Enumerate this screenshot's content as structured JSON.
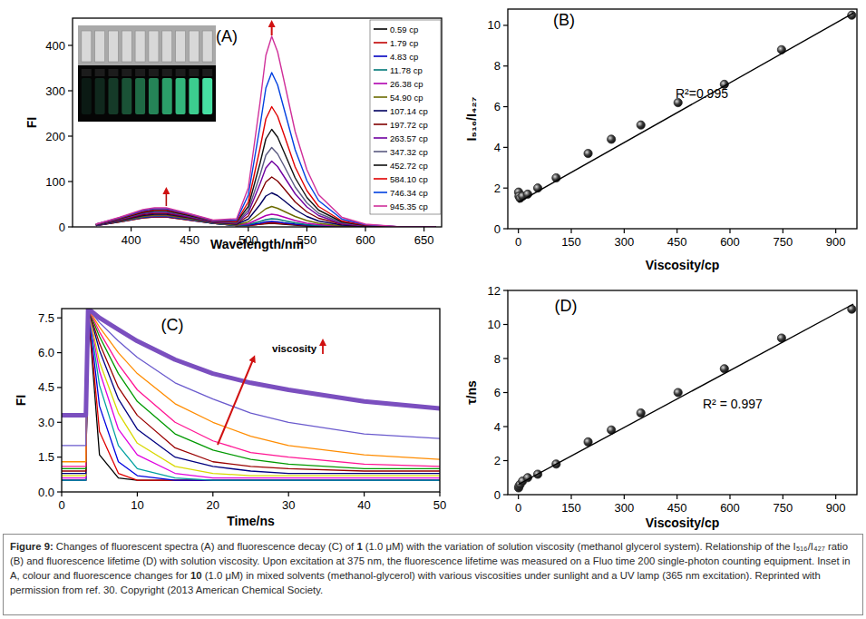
{
  "chart_data": [
    {
      "type": "line",
      "title": "(A)",
      "x_label": "Wavelength/nm",
      "y_label": "FI",
      "legend": "upper right",
      "x": [
        370,
        390,
        410,
        420,
        430,
        450,
        470,
        490,
        500,
        510,
        515,
        520,
        525,
        530,
        540,
        550,
        560,
        580,
        600,
        630,
        660
      ],
      "xlim": [
        350,
        665
      ],
      "xticks": [
        400,
        450,
        500,
        550,
        600,
        650
      ],
      "ylim": [
        0,
        460
      ],
      "yticks": [
        0,
        100,
        200,
        300,
        400
      ],
      "series": [
        {
          "name": "0.59 cp",
          "color": "#000000",
          "values": [
            3,
            11,
            20,
            22,
            22,
            15,
            8,
            3,
            3,
            6,
            7,
            8,
            7,
            6,
            4,
            2,
            1,
            0,
            0,
            0,
            0
          ]
        },
        {
          "name": "1.79 cp",
          "color": "#c00000",
          "values": [
            3,
            11,
            20,
            22,
            22,
            15,
            8,
            3,
            3,
            6,
            8,
            9,
            8,
            7,
            5,
            3,
            2,
            0,
            0,
            0,
            0
          ]
        },
        {
          "name": "4.83 cp",
          "color": "#0000c0",
          "values": [
            3,
            12,
            21,
            23,
            23,
            16,
            8,
            3,
            4,
            8,
            11,
            12,
            11,
            9,
            6,
            4,
            2,
            1,
            0,
            0,
            0
          ]
        },
        {
          "name": "11.78 cp",
          "color": "#007878",
          "values": [
            4,
            12,
            22,
            24,
            24,
            17,
            8,
            3,
            5,
            12,
            16,
            18,
            17,
            14,
            9,
            5,
            3,
            1,
            0,
            0,
            0
          ]
        },
        {
          "name": "26.38 cp",
          "color": "#b000b0",
          "values": [
            4,
            13,
            23,
            25,
            25,
            18,
            9,
            4,
            7,
            19,
            25,
            28,
            26,
            22,
            14,
            8,
            5,
            1,
            0,
            0,
            0
          ]
        },
        {
          "name": "54.90 cp",
          "color": "#6b6b00",
          "values": [
            4,
            13,
            23,
            26,
            26,
            18,
            9,
            4,
            11,
            30,
            40,
            45,
            41,
            35,
            23,
            14,
            8,
            2,
            1,
            0,
            0
          ]
        },
        {
          "name": "107.14 cp",
          "color": "#000060",
          "values": [
            4,
            14,
            25,
            28,
            28,
            20,
            10,
            6,
            17,
            49,
            68,
            75,
            69,
            59,
            38,
            23,
            13,
            4,
            1,
            0,
            0
          ]
        },
        {
          "name": "197.72 cp",
          "color": "#800000",
          "values": [
            5,
            15,
            27,
            30,
            30,
            21,
            11,
            7,
            24,
            72,
            99,
            110,
            101,
            86,
            55,
            33,
            19,
            6,
            2,
            0,
            0
          ]
        },
        {
          "name": "263.57 cp",
          "color": "#7000a0",
          "values": [
            5,
            16,
            29,
            32,
            32,
            22,
            11,
            8,
            31,
            95,
            130,
            145,
            133,
            113,
            73,
            44,
            25,
            7,
            2,
            0,
            0
          ]
        },
        {
          "name": "347.32 cp",
          "color": "#5a5a80",
          "values": [
            5,
            17,
            31,
            34,
            34,
            24,
            12,
            9,
            37,
            114,
            158,
            175,
            161,
            137,
            88,
            53,
            30,
            9,
            3,
            0,
            0
          ]
        },
        {
          "name": "452.72 cp",
          "color": "#111111",
          "values": [
            5,
            18,
            32,
            36,
            36,
            25,
            13,
            11,
            45,
            140,
            194,
            215,
            198,
            168,
            108,
            65,
            37,
            11,
            3,
            0,
            0
          ]
        },
        {
          "name": "584.10 cp",
          "color": "#e00000",
          "values": [
            6,
            19,
            34,
            38,
            38,
            27,
            13,
            12,
            55,
            173,
            238,
            265,
            244,
            207,
            132,
            80,
            45,
            13,
            4,
            0,
            0
          ]
        },
        {
          "name": "746.34 cp",
          "color": "#0040e0",
          "values": [
            6,
            20,
            36,
            40,
            40,
            28,
            14,
            15,
            70,
            222,
            306,
            340,
            313,
            265,
            170,
            102,
            58,
            17,
            5,
            0,
            0
          ]
        },
        {
          "name": "945.35 cp",
          "color": "#d0309a",
          "values": [
            6,
            21,
            38,
            42,
            42,
            29,
            15,
            18,
            86,
            274,
            378,
            420,
            386,
            328,
            210,
            126,
            71,
            21,
            6,
            0,
            0
          ]
        }
      ]
    },
    {
      "type": "scatter",
      "title": "(B)",
      "x_label": "Viscosity/cp",
      "y_label": "I₅₁₆/I₄₂₇",
      "annotation": "R²=0.995",
      "xlim": [
        -30,
        960
      ],
      "xticks": [
        0,
        150,
        300,
        450,
        600,
        750,
        900
      ],
      "ylim": [
        0,
        10.8
      ],
      "yticks": [
        0,
        2,
        4,
        6,
        8,
        10
      ],
      "series": [
        {
          "type": "scatter",
          "marker": "circle",
          "color": "#2b2b2b",
          "x": [
            0.59,
            1.79,
            4.83,
            11.78,
            26.38,
            54.9,
            107.14,
            197.72,
            263.57,
            347.32,
            452.72,
            584.1,
            746.34,
            945.35
          ],
          "values": [
            1.8,
            1.6,
            1.5,
            1.6,
            1.7,
            2.0,
            2.5,
            3.7,
            4.4,
            5.1,
            6.2,
            7.1,
            8.8,
            10.5
          ]
        },
        {
          "type": "line",
          "color": "#000000",
          "x": [
            0,
            950
          ],
          "values": [
            1.3,
            10.6
          ]
        }
      ]
    },
    {
      "type": "line",
      "title": "(C)",
      "x_label": "Time/ns",
      "y_label": "FI",
      "annotation": "viscosity",
      "x": [
        0,
        3.2,
        3.5,
        5,
        7.5,
        10,
        15,
        20,
        25,
        30,
        40,
        50
      ],
      "xlim": [
        0,
        50
      ],
      "xticks": [
        0,
        10,
        20,
        30,
        40,
        50
      ],
      "ylim": [
        0,
        7.9
      ],
      "yticks": [
        {
          "value": 0,
          "label": "0.0"
        },
        1.5,
        {
          "value": 3,
          "label": "3.0"
        },
        4.5,
        {
          "value": 6,
          "label": "6.0"
        },
        7.5
      ],
      "series": [
        {
          "color": "#000000",
          "values": [
            0.5,
            0.5,
            7.9,
            1.6,
            0.6,
            0.5,
            0.5,
            0.5,
            0.5,
            0.5,
            0.5,
            0.5
          ]
        },
        {
          "color": "#e00000",
          "values": [
            0.5,
            0.5,
            7.9,
            2.6,
            0.8,
            0.5,
            0.5,
            0.5,
            0.5,
            0.5,
            0.5,
            0.5
          ]
        },
        {
          "color": "#0000e0",
          "values": [
            0.5,
            0.5,
            7.9,
            3.7,
            1.3,
            0.7,
            0.5,
            0.5,
            0.5,
            0.5,
            0.5,
            0.5
          ]
        },
        {
          "color": "#00a0a0",
          "values": [
            0.5,
            0.5,
            7.9,
            4.6,
            2.0,
            1.0,
            0.6,
            0.5,
            0.5,
            0.5,
            0.5,
            0.5
          ]
        },
        {
          "color": "#e000e0",
          "values": [
            0.6,
            0.6,
            7.9,
            5.2,
            2.7,
            1.6,
            0.8,
            0.6,
            0.6,
            0.6,
            0.6,
            0.6
          ]
        },
        {
          "color": "#d8d800",
          "values": [
            0.7,
            0.7,
            7.9,
            5.6,
            3.4,
            2.1,
            1.1,
            0.8,
            0.7,
            0.7,
            0.7,
            0.7
          ]
        },
        {
          "color": "#000080",
          "values": [
            0.8,
            0.8,
            7.9,
            6.1,
            4.0,
            2.7,
            1.5,
            1.1,
            0.9,
            0.8,
            0.8,
            0.8
          ]
        },
        {
          "color": "#990000",
          "values": [
            0.9,
            0.9,
            7.9,
            6.4,
            4.5,
            3.3,
            1.9,
            1.3,
            1.1,
            1.0,
            0.9,
            0.9
          ]
        },
        {
          "color": "#009900",
          "values": [
            1.0,
            1.0,
            7.9,
            6.7,
            5.1,
            3.9,
            2.5,
            1.8,
            1.4,
            1.2,
            1.0,
            1.0
          ]
        },
        {
          "color": "#ff1493",
          "values": [
            1.1,
            1.1,
            7.9,
            6.9,
            5.5,
            4.4,
            3.0,
            2.2,
            1.7,
            1.5,
            1.2,
            1.1
          ]
        },
        {
          "color": "#ff8c00",
          "values": [
            1.3,
            1.3,
            7.9,
            7.1,
            6.0,
            5.1,
            3.8,
            3.0,
            2.4,
            2.0,
            1.6,
            1.4
          ]
        },
        {
          "color": "#6a5acd",
          "values": [
            2.0,
            2.0,
            7.9,
            7.3,
            6.5,
            5.8,
            4.7,
            4.0,
            3.4,
            3.0,
            2.5,
            2.3
          ]
        },
        {
          "color": "#7b4fbf",
          "values": [
            3.3,
            3.3,
            7.9,
            7.5,
            7.0,
            6.5,
            5.7,
            5.1,
            4.7,
            4.4,
            3.9,
            3.6
          ]
        }
      ]
    },
    {
      "type": "scatter",
      "title": "(D)",
      "x_label": "Viscosity/cp",
      "y_label": "τ/ns",
      "annotation": "R² = 0.997",
      "xlim": [
        -30,
        960
      ],
      "xticks": [
        0,
        150,
        300,
        450,
        600,
        750,
        900
      ],
      "ylim": [
        0,
        12
      ],
      "yticks": [
        0,
        2,
        4,
        6,
        8,
        10,
        12
      ],
      "series": [
        {
          "type": "scatter",
          "marker": "circle",
          "color": "#2b2b2b",
          "x": [
            0.59,
            1.79,
            4.83,
            11.78,
            26.38,
            54.9,
            107.14,
            197.72,
            263.57,
            347.32,
            452.72,
            584.1,
            746.34,
            945.35
          ],
          "values": [
            0.4,
            0.5,
            0.6,
            0.8,
            1.0,
            1.2,
            1.8,
            3.1,
            3.8,
            4.8,
            6.0,
            7.4,
            9.2,
            10.9
          ]
        },
        {
          "type": "line",
          "color": "#000000",
          "x": [
            0,
            950
          ],
          "values": [
            0.6,
            11.2
          ]
        }
      ]
    }
  ],
  "caption": [
    {
      "text": "Figure 9:",
      "bold": true
    },
    {
      "text": " Changes of fluorescent spectra (A) and fluorescence decay (C) of "
    },
    {
      "text": "1",
      "bold": true
    },
    {
      "text": " (1.0 μM) with the variation of solution viscosity (methanol glycerol system). Relationship of the I₅₁₆/I₄₂₇ ratio (B) and fluorescence lifetime (D) with solution viscosity. Upon excitation at 375 nm, the fluorescence lifetime was measured on a Fluo time 200 single-photon counting equipment. Inset in A, colour and fluorescence changes for "
    },
    {
      "text": "10",
      "bold": true
    },
    {
      "text": " (1.0 μM) in mixed solvents (methanol-glycerol) with various viscosities under sunlight and a UV lamp (365 nm excitation). Reprinted with permission from ref. 30. Copyright (2013 American Chemical Society."
    }
  ]
}
